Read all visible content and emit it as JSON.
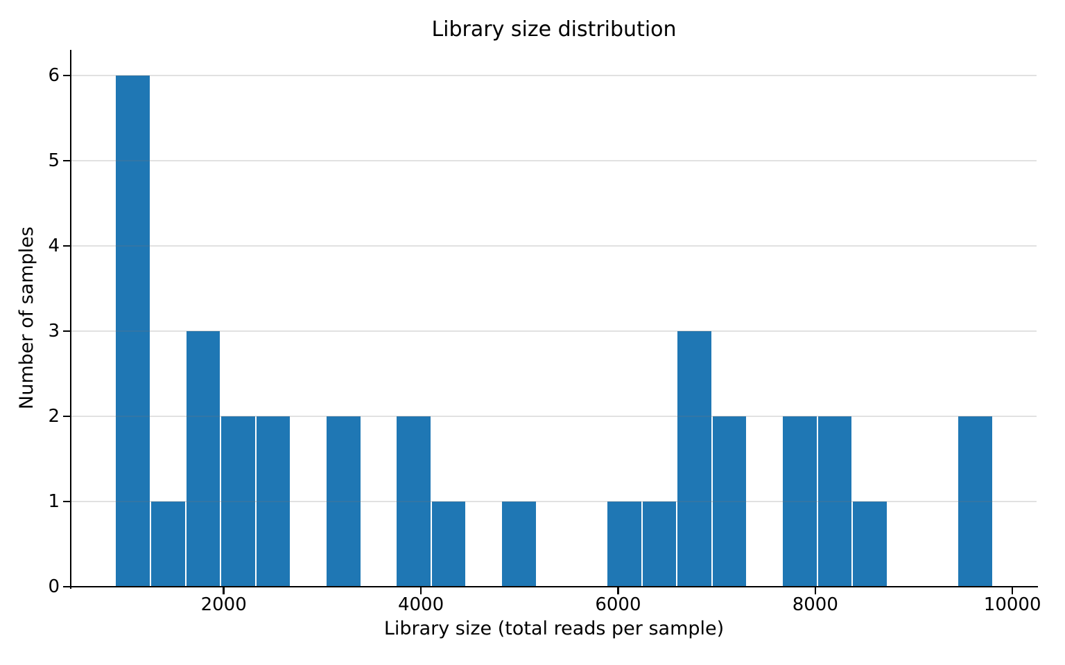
{
  "chart_data": {
    "type": "bar",
    "subtype": "histogram",
    "title": "Library size distribution",
    "xlabel": "Library size (total reads per sample)",
    "ylabel": "Number of samples",
    "bin_edges": [
      900,
      1256,
      1612,
      1968,
      2324,
      2680,
      3036,
      3392,
      3748,
      4104,
      4460,
      4816,
      5172,
      5528,
      5884,
      6240,
      6596,
      6952,
      7308,
      7664,
      8020,
      8376,
      8732,
      9088,
      9444,
      9800
    ],
    "counts": [
      6,
      1,
      3,
      2,
      2,
      0,
      2,
      0,
      2,
      1,
      0,
      1,
      0,
      0,
      1,
      1,
      3,
      2,
      0,
      2,
      2,
      1,
      0,
      0,
      2
    ],
    "xticks": [
      2000,
      4000,
      6000,
      8000,
      10000
    ],
    "yticks": [
      0,
      1,
      2,
      3,
      4,
      5,
      6
    ],
    "xlim": [
      455,
      10245
    ],
    "ylim": [
      0,
      6.3
    ],
    "grid": "horizontal",
    "legend_position": "none",
    "bar_color": "#1f77b4",
    "bar_edge_color": "#ffffff",
    "spine_color": "#000000",
    "gridline_color": "#e4e4e4"
  }
}
